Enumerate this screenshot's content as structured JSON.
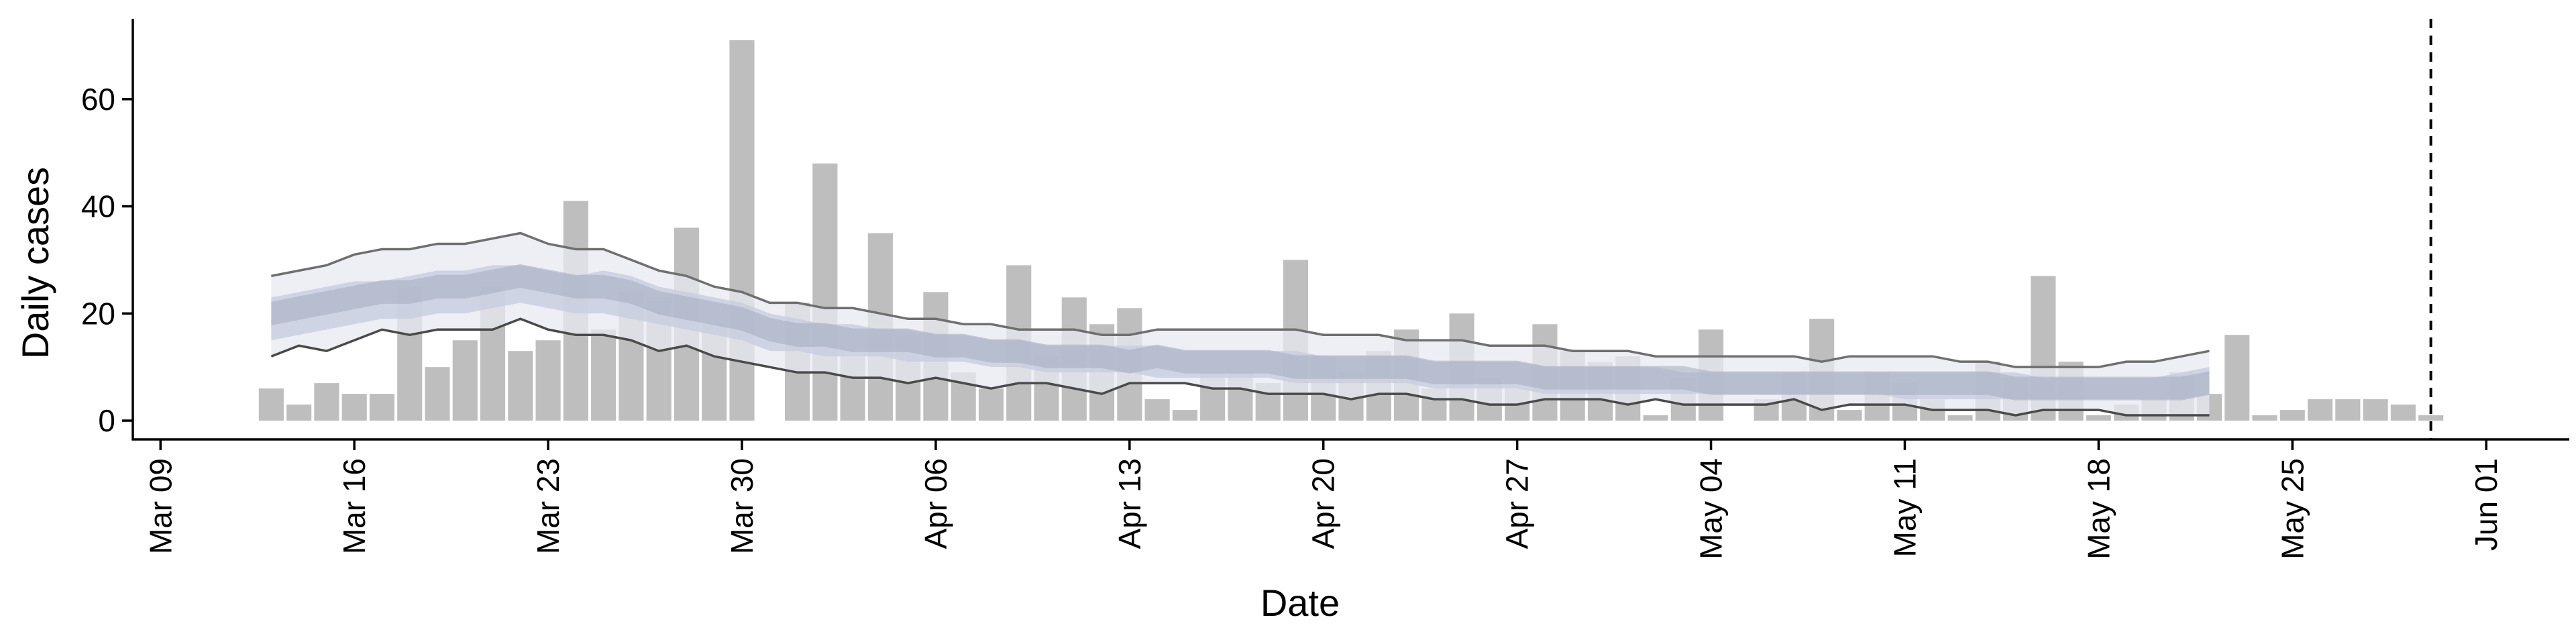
{
  "chart_data": {
    "type": "bar",
    "xlabel": "Date",
    "ylabel": "Daily cases",
    "x_tick_labels": [
      "Mar 09",
      "Mar 16",
      "Mar 23",
      "Mar 30",
      "Apr 06",
      "Apr 13",
      "Apr 20",
      "Apr 27",
      "May 04",
      "May 11",
      "May 18",
      "May 25",
      "Jun 01"
    ],
    "y_tick_labels": [
      "0",
      "20",
      "40",
      "60"
    ],
    "x_ticks_dates": [
      "2020-03-09",
      "2020-03-16",
      "2020-03-23",
      "2020-03-30",
      "2020-04-06",
      "2020-04-13",
      "2020-04-20",
      "2020-04-27",
      "2020-05-04",
      "2020-05-11",
      "2020-05-18",
      "2020-05-25",
      "2020-06-01"
    ],
    "y_ticks": [
      0,
      20,
      40,
      60
    ],
    "xlim": [
      "2020-03-08",
      "2020-06-04"
    ],
    "ylim": [
      -3.5,
      75
    ],
    "grid": false,
    "colors": {
      "bars": "#bebebe",
      "band_outer": "#e8eaf2",
      "band_inner": "#c5cde0",
      "overlap": "#a4acbd",
      "interval_lines": "#6f6f6f",
      "reference_line": "#000000"
    },
    "bars": {
      "start_date": "2020-03-13",
      "values": [
        6,
        3,
        7,
        5,
        5,
        25,
        10,
        15,
        25,
        13,
        15,
        41,
        17,
        24,
        23,
        36,
        18,
        71,
        0,
        22,
        48,
        12,
        35,
        16,
        24,
        9,
        6,
        29,
        12,
        23,
        18,
        21,
        4,
        2,
        9,
        9,
        7,
        30,
        12,
        9,
        13,
        17,
        6,
        20,
        8,
        6,
        18,
        13,
        11,
        12,
        1,
        8,
        17,
        0,
        4,
        9,
        19,
        2,
        9,
        7,
        4,
        1,
        11,
        8,
        27,
        11,
        1,
        3,
        4,
        9,
        5,
        16,
        1,
        2,
        4,
        4,
        4,
        3,
        1
      ]
    },
    "estimate": {
      "start_date": "2020-03-13",
      "outer_upper": [
        27,
        28,
        29,
        31,
        32,
        32,
        33,
        33,
        34,
        35,
        33,
        32,
        32,
        30,
        28,
        27,
        25,
        24,
        22,
        22,
        21,
        21,
        20,
        19,
        19,
        18,
        18,
        17,
        17,
        17,
        16,
        16,
        17,
        17,
        17,
        17,
        17,
        17,
        16,
        16,
        16,
        15,
        15,
        15,
        14,
        14,
        14,
        13,
        13,
        13,
        12,
        12,
        12,
        12,
        12,
        12,
        11,
        12,
        12,
        12,
        12,
        11,
        11,
        10,
        10,
        10,
        10,
        11,
        11,
        12,
        13
      ],
      "inner_upper": [
        23,
        24,
        25,
        26,
        26,
        27,
        28,
        28,
        29,
        29,
        28,
        27,
        28,
        27,
        25,
        24,
        23,
        22,
        20,
        19,
        18,
        18,
        17,
        17,
        16,
        16,
        15,
        15,
        14,
        14,
        14,
        14,
        14,
        13,
        13,
        13,
        13,
        13,
        12,
        12,
        12,
        12,
        11,
        11,
        11,
        11,
        10,
        10,
        10,
        10,
        10,
        9,
        9,
        9,
        9,
        9,
        9,
        9,
        9,
        9,
        9,
        9,
        9,
        9,
        8,
        8,
        8,
        8,
        8,
        9,
        10
      ],
      "median": [
        20,
        21,
        22,
        23,
        24,
        24,
        25,
        25,
        26,
        27,
        26,
        25,
        25,
        24,
        22,
        21,
        20,
        19,
        17,
        16,
        16,
        15,
        15,
        15,
        14,
        14,
        13,
        13,
        12,
        12,
        12,
        11,
        12,
        11,
        11,
        11,
        11,
        10,
        10,
        10,
        10,
        10,
        9,
        9,
        9,
        9,
        8,
        8,
        8,
        8,
        8,
        8,
        7,
        7,
        7,
        7,
        7,
        7,
        7,
        7,
        7,
        7,
        7,
        6,
        6,
        6,
        6,
        6,
        6,
        6,
        7
      ],
      "inner_lower": [
        15,
        16,
        17,
        18,
        19,
        19,
        20,
        20,
        21,
        22,
        21,
        20,
        20,
        19,
        18,
        17,
        16,
        15,
        13,
        13,
        12,
        12,
        12,
        11,
        11,
        11,
        10,
        10,
        9,
        9,
        9,
        9,
        8,
        8,
        8,
        8,
        8,
        7,
        7,
        7,
        7,
        7,
        6,
        6,
        6,
        6,
        5,
        5,
        5,
        5,
        5,
        5,
        5,
        5,
        5,
        5,
        5,
        5,
        5,
        4,
        4,
        4,
        4,
        4,
        4,
        4,
        4,
        4,
        4,
        4,
        5
      ],
      "outer_lower": [
        12,
        14,
        13,
        15,
        17,
        16,
        17,
        17,
        17,
        19,
        17,
        16,
        16,
        15,
        13,
        14,
        12,
        11,
        10,
        9,
        9,
        8,
        8,
        7,
        8,
        7,
        6,
        7,
        7,
        6,
        5,
        7,
        7,
        7,
        6,
        6,
        5,
        5,
        5,
        4,
        5,
        5,
        4,
        4,
        3,
        3,
        4,
        4,
        4,
        3,
        4,
        3,
        3,
        3,
        3,
        4,
        2,
        3,
        3,
        3,
        2,
        2,
        2,
        1,
        2,
        2,
        2,
        1,
        1,
        1,
        1
      ]
    },
    "reference_line_date": "2020-05-30"
  }
}
